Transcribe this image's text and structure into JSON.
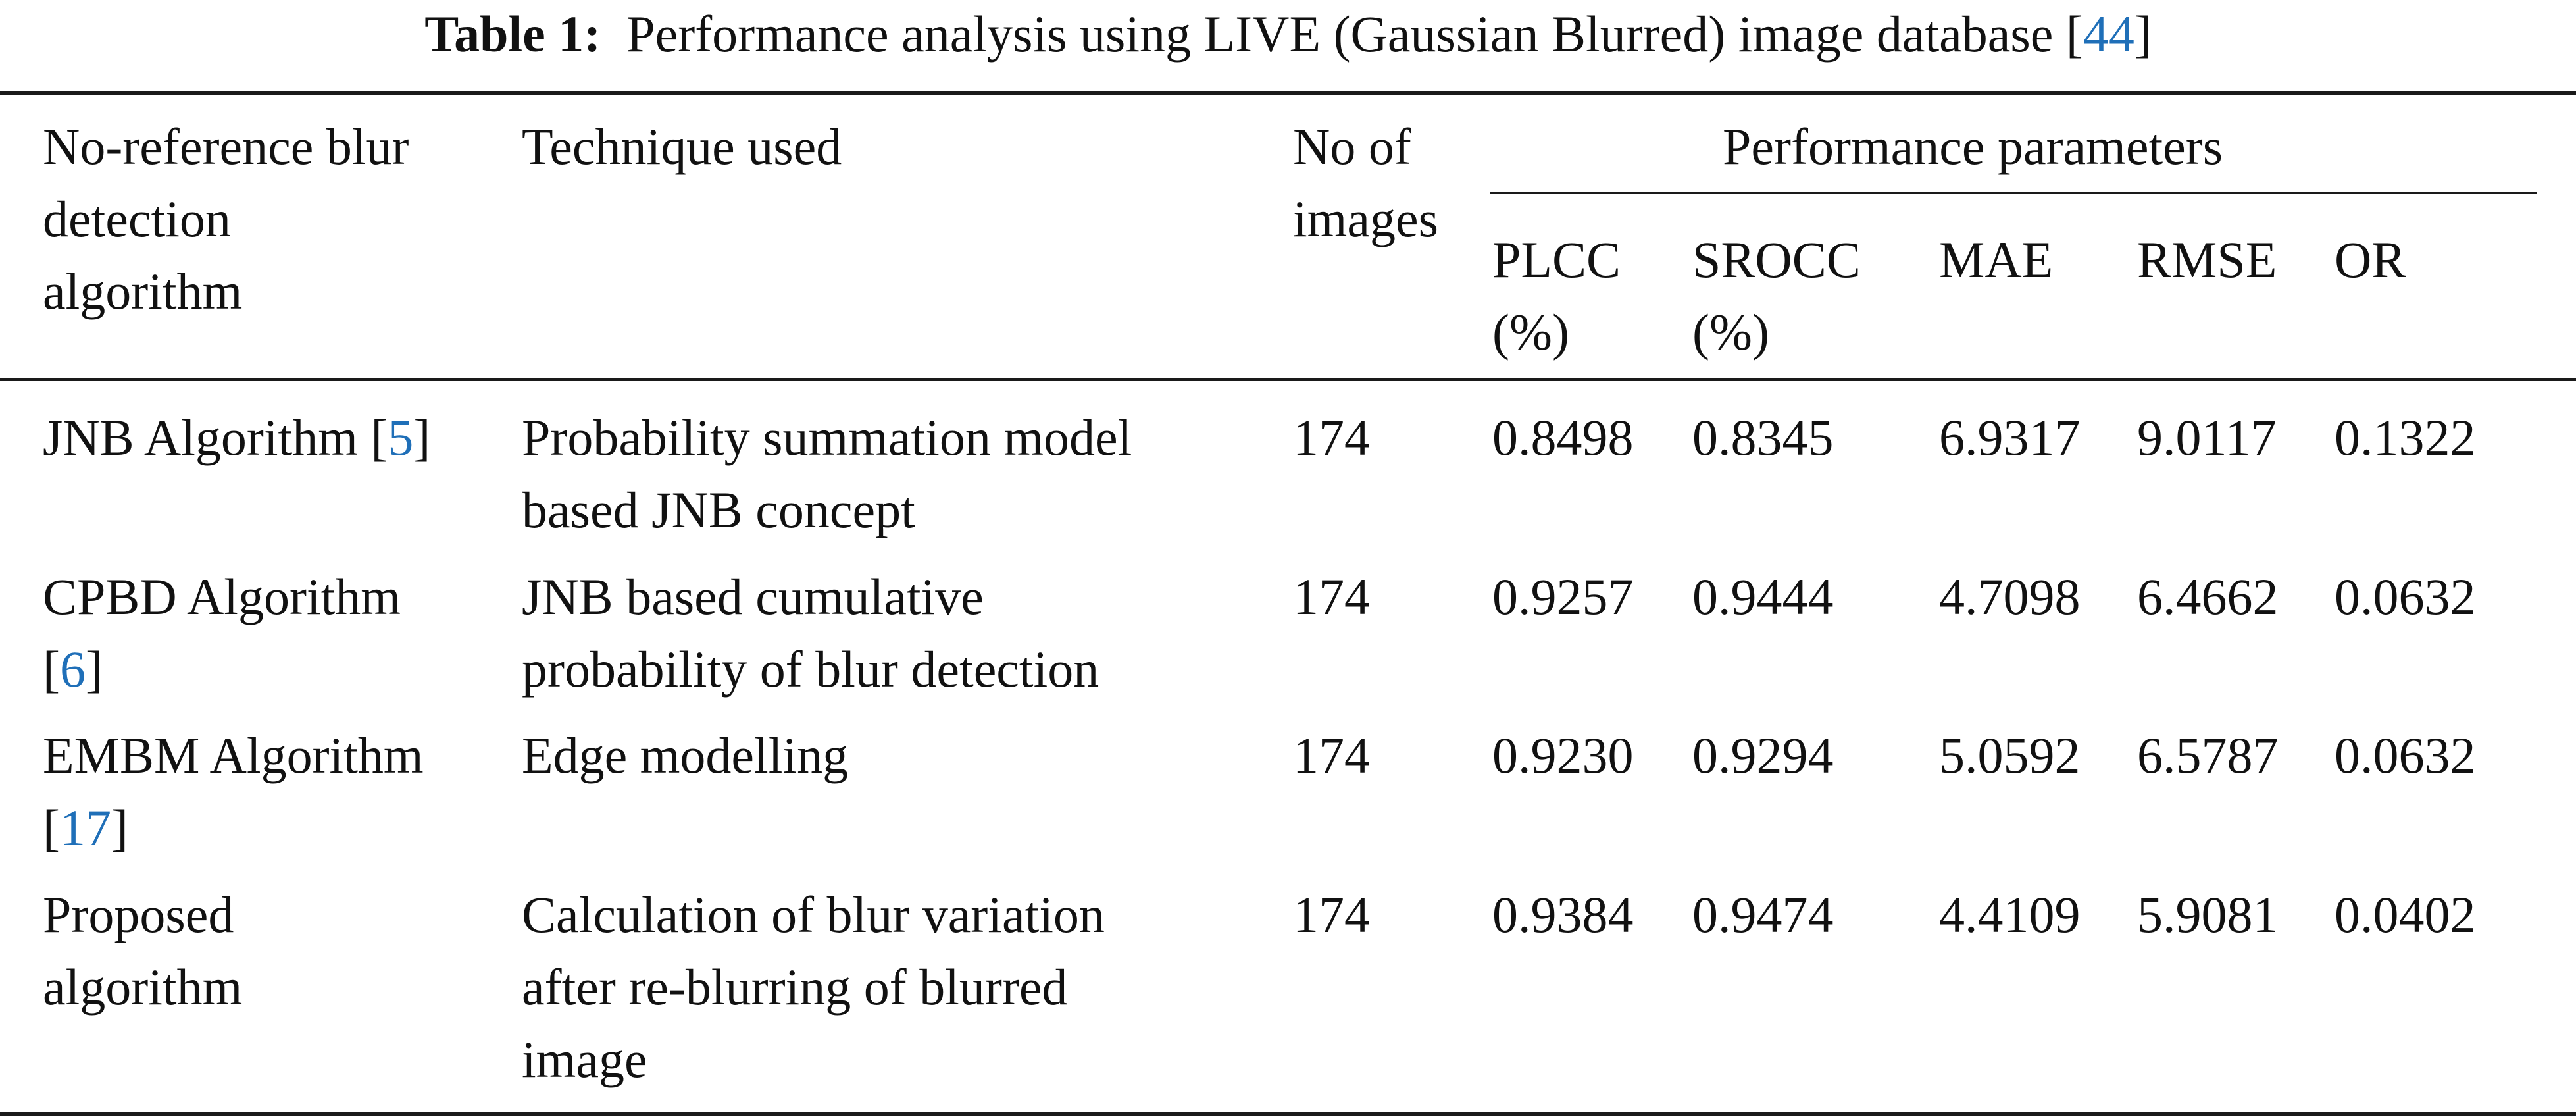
{
  "caption": {
    "label": "Table 1:",
    "text": "Performance analysis using LIVE (Gaussian Blurred) image database [",
    "ref": "44",
    "close": "]"
  },
  "header": {
    "algorithm": [
      "No-reference blur",
      "detection",
      "algorithm"
    ],
    "technique": "Technique used",
    "images": [
      "No of",
      "images"
    ],
    "group": "Performance parameters",
    "plcc": [
      "PLCC",
      "(%)"
    ],
    "srocc": [
      "SROCC",
      "(%)"
    ],
    "mae": "MAE",
    "rmse": "RMSE",
    "or": "OR"
  },
  "rows": [
    {
      "algorithm": [
        "JNB Algorithm [",
        "5",
        "]"
      ],
      "technique": [
        "Probability summation model",
        "based JNB concept"
      ],
      "images": "174",
      "plcc": "0.8498",
      "srocc": "0.8345",
      "mae": "6.9317",
      "rmse": "9.0117",
      "or": "0.1322"
    },
    {
      "algorithm": [
        "CPBD Algorithm",
        "[",
        "6",
        "]"
      ],
      "technique": [
        "JNB based cumulative",
        "probability of blur detection"
      ],
      "images": "174",
      "plcc": "0.9257",
      "srocc": "0.9444",
      "mae": "4.7098",
      "rmse": "6.4662",
      "or": "0.0632"
    },
    {
      "algorithm": [
        "EMBM Algorithm",
        "[",
        "17",
        "]"
      ],
      "technique": [
        "Edge modelling"
      ],
      "images": "174",
      "plcc": "0.9230",
      "srocc": "0.9294",
      "mae": "5.0592",
      "rmse": "6.5787",
      "or": "0.0632"
    },
    {
      "algorithm": [
        "Proposed",
        "algorithm"
      ],
      "technique": [
        "Calculation of blur variation",
        "after re-blurring of blurred",
        "image"
      ],
      "images": "174",
      "plcc": "0.9384",
      "srocc": "0.9474",
      "mae": "4.4109",
      "rmse": "5.9081",
      "or": "0.0402"
    }
  ],
  "colors": {
    "text": "#111111",
    "reference_link": "#1f6fb8",
    "rule": "#1a1a1a"
  }
}
